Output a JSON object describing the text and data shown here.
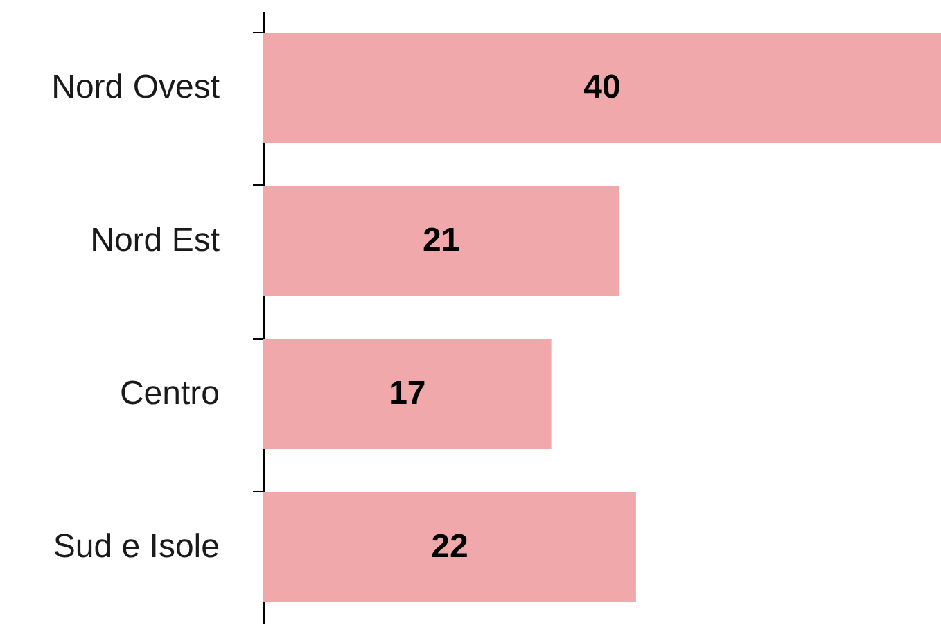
{
  "chart_data": {
    "type": "bar",
    "orientation": "horizontal",
    "categories": [
      "Nord Ovest",
      "Nord Est",
      "Centro",
      "Sud e Isole"
    ],
    "values": [
      40,
      21,
      17,
      22
    ],
    "color": "#f0a8ab",
    "data_labels": true
  }
}
